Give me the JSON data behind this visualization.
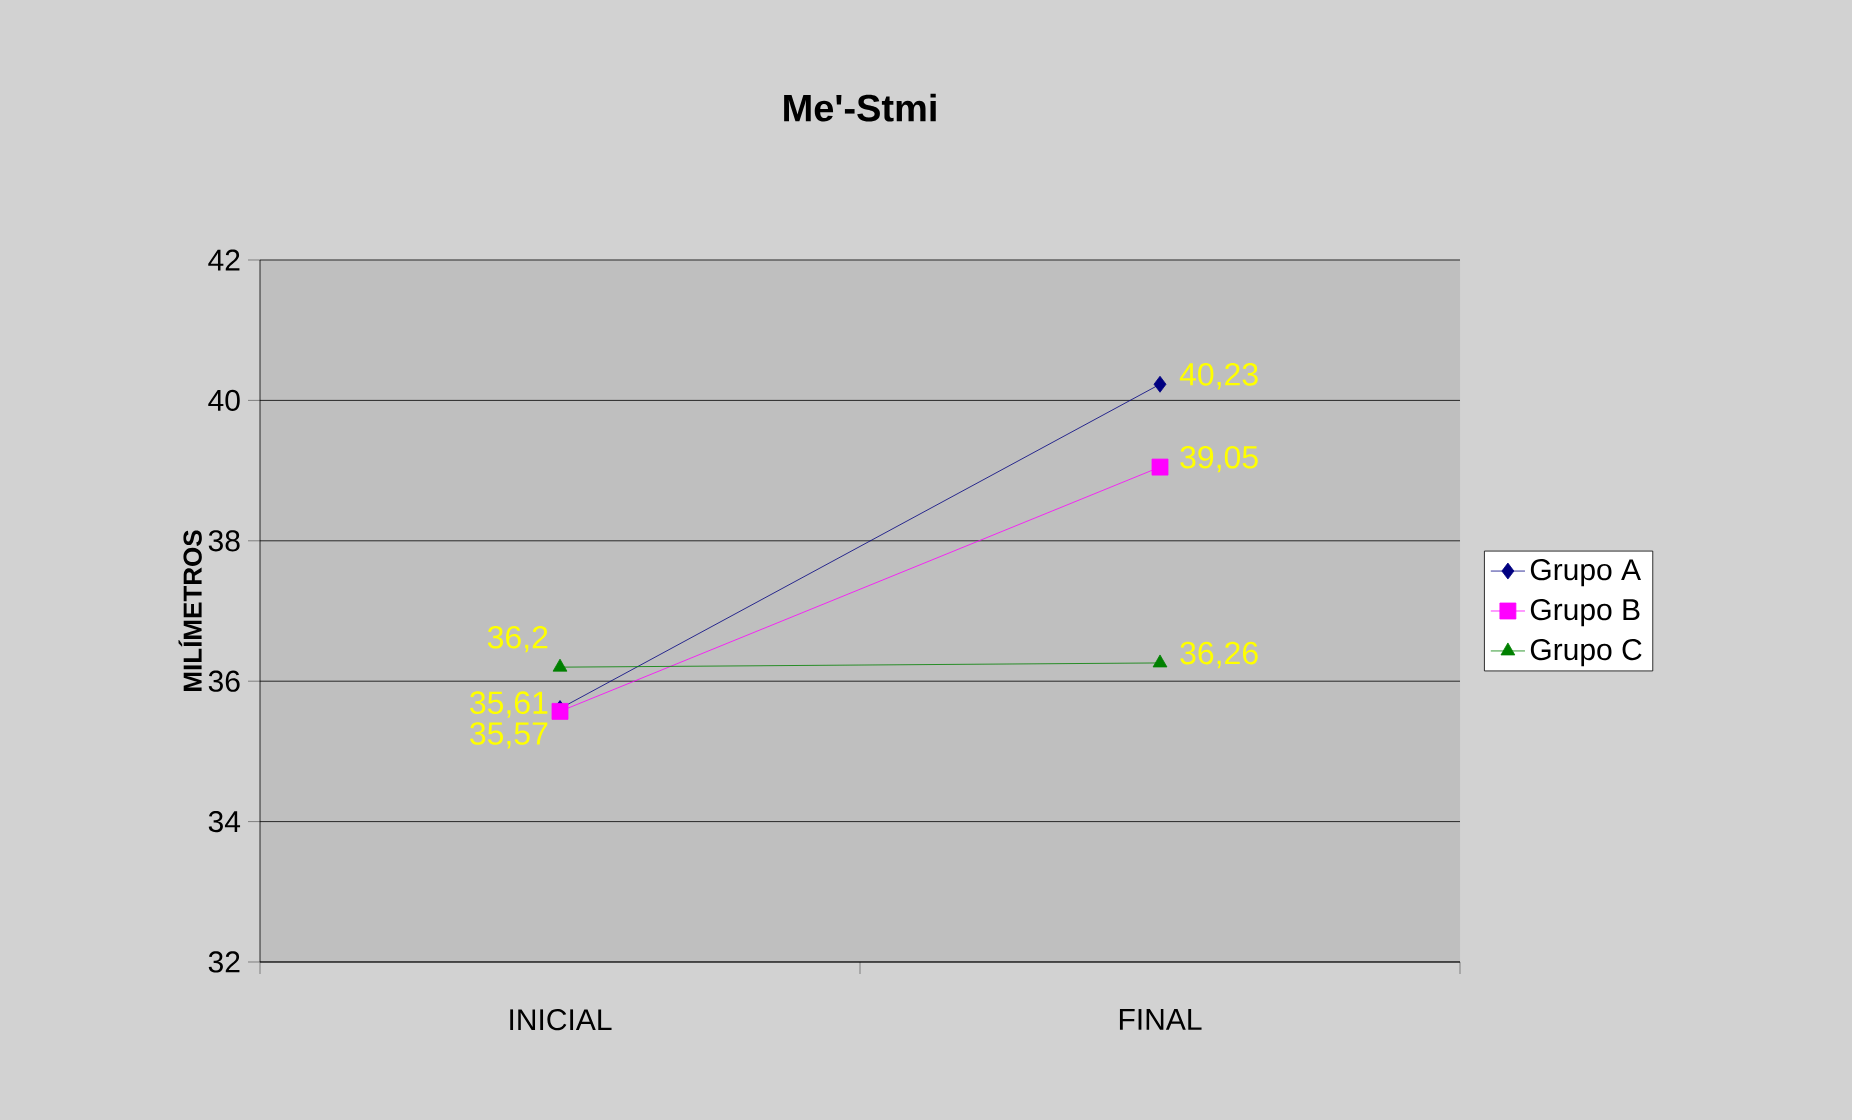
{
  "chart_data": {
    "type": "line",
    "title": "Me'-Stmi",
    "ylabel": "MILÍMETROS",
    "categories": [
      "INICIAL",
      "FINAL"
    ],
    "series": [
      {
        "name": "Grupo A",
        "color": "#000080",
        "marker": "diamond",
        "values": [
          35.61,
          40.23
        ],
        "value_labels": [
          "35,61",
          "40,23"
        ]
      },
      {
        "name": "Grupo B",
        "color": "#ff00ff",
        "marker": "square",
        "values": [
          35.57,
          39.05
        ],
        "value_labels": [
          "35,57",
          "39,05"
        ]
      },
      {
        "name": "Grupo C",
        "color": "#008000",
        "marker": "triangle",
        "values": [
          36.2,
          36.26
        ],
        "value_labels": [
          "36,2",
          "36,26"
        ]
      }
    ],
    "ylim": [
      32,
      42
    ],
    "yticks": [
      32,
      34,
      36,
      38,
      40,
      42
    ],
    "grid": "y",
    "legend": "right",
    "line_style": "solid"
  }
}
